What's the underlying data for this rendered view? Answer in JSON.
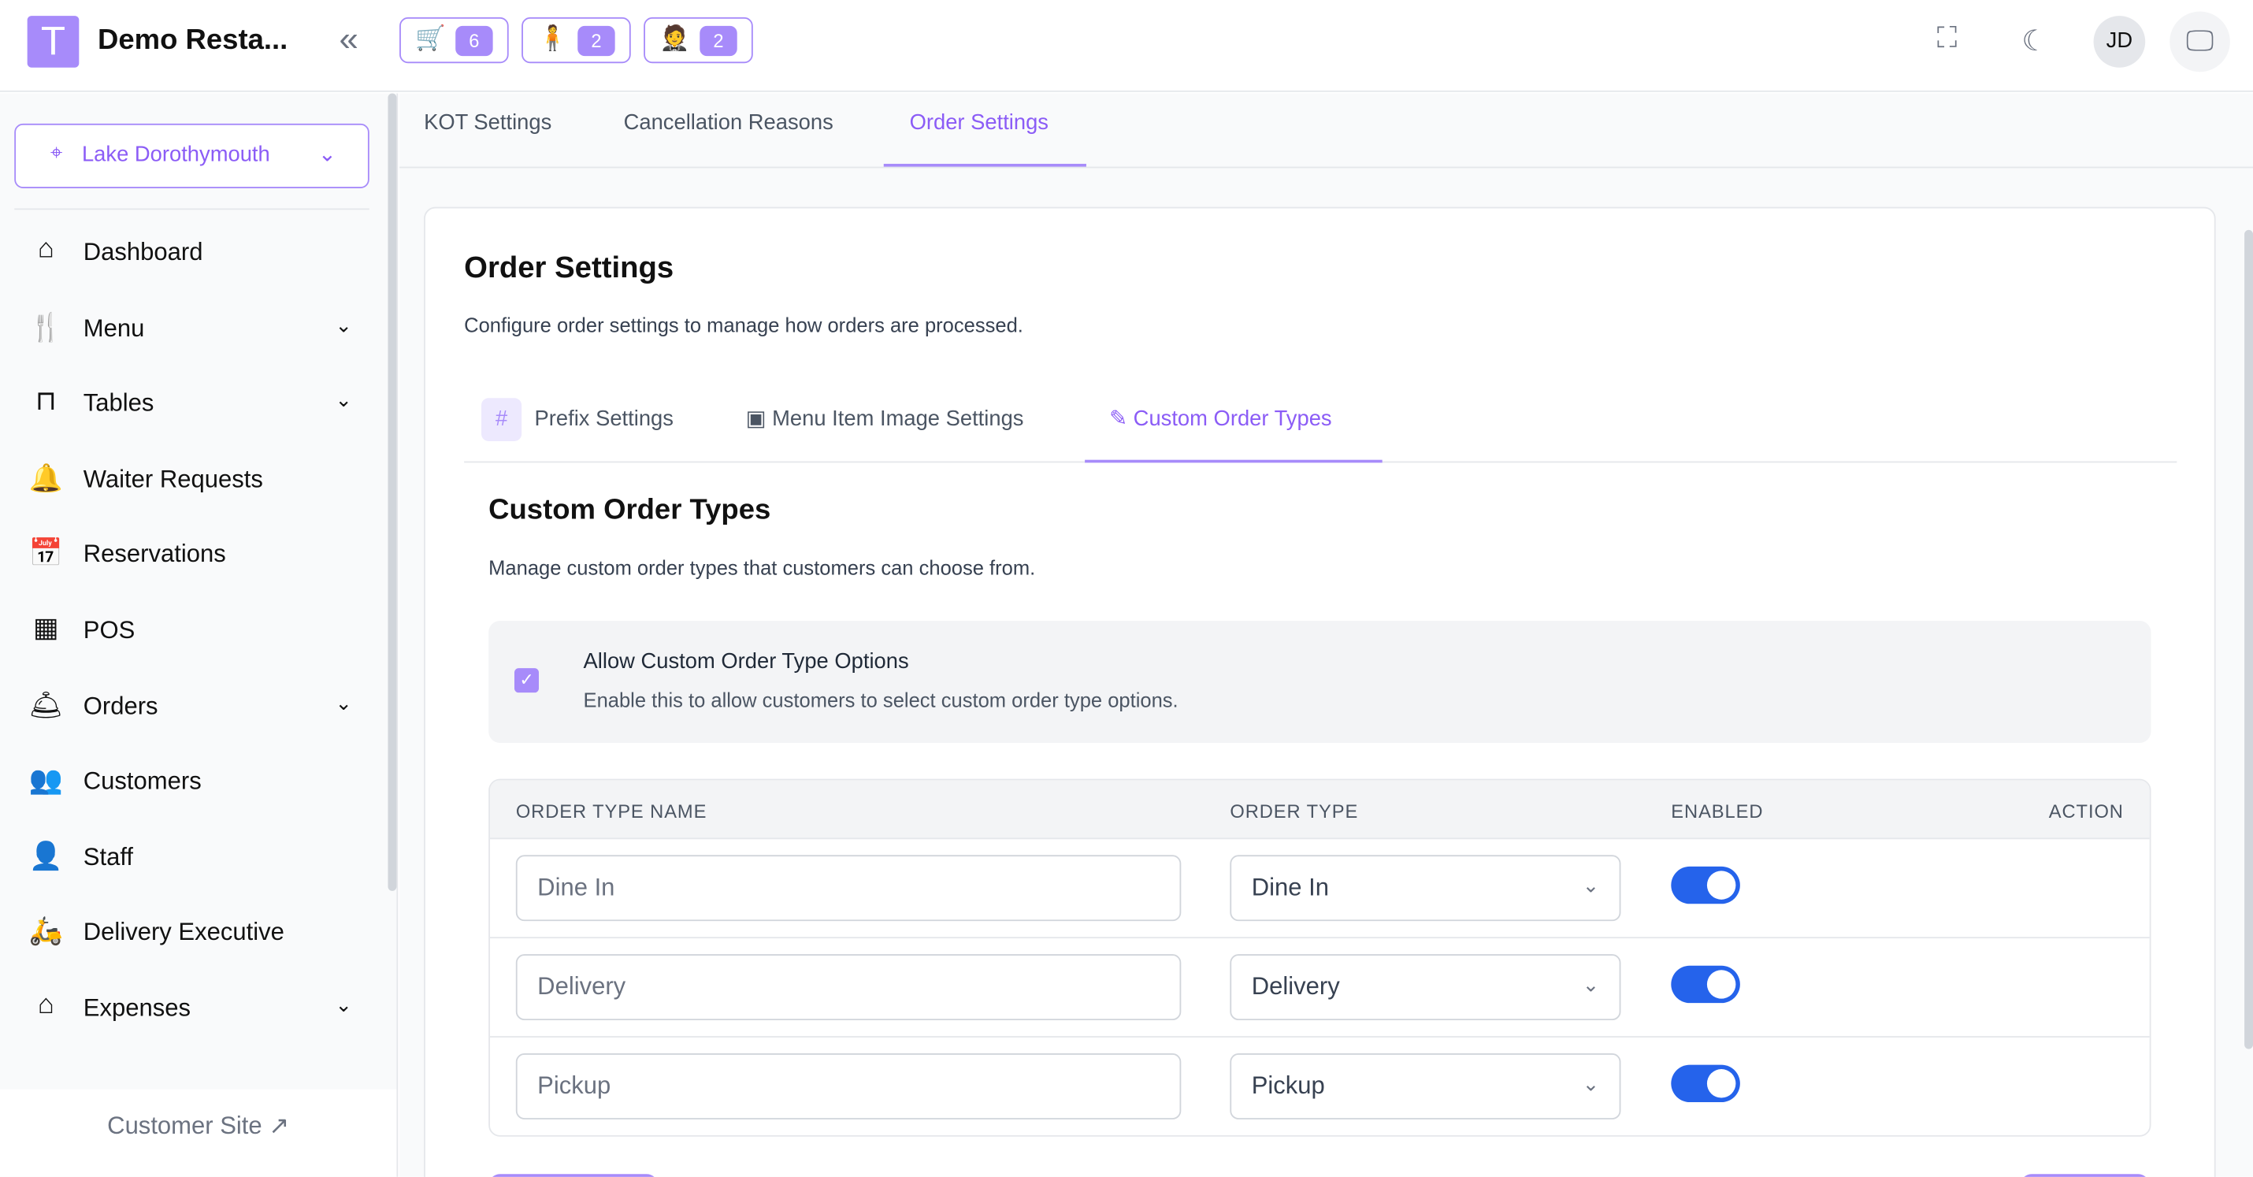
{
  "header": {
    "logo_letter": "T",
    "restaurant": "Demo Resta...",
    "badges": [
      {
        "icon": "cart-check-icon",
        "count": "6"
      },
      {
        "icon": "waiter-request-icon",
        "count": "2"
      },
      {
        "icon": "waiter-icon",
        "count": "2"
      }
    ],
    "avatar": "JD"
  },
  "sidebar": {
    "location": "Lake Dorothymouth",
    "items": [
      {
        "label": "Dashboard",
        "icon": "home-icon",
        "chevron": false
      },
      {
        "label": "Menu",
        "icon": "menu-icon",
        "chevron": true
      },
      {
        "label": "Tables",
        "icon": "table-icon",
        "chevron": true
      },
      {
        "label": "Waiter Requests",
        "icon": "bell-icon",
        "chevron": false
      },
      {
        "label": "Reservations",
        "icon": "calendar-icon",
        "chevron": false
      },
      {
        "label": "POS",
        "icon": "pos-icon",
        "chevron": false
      },
      {
        "label": "Orders",
        "icon": "cloche-icon",
        "chevron": true
      },
      {
        "label": "Customers",
        "icon": "users-icon",
        "chevron": false
      },
      {
        "label": "Staff",
        "icon": "staff-icon",
        "chevron": false
      },
      {
        "label": "Delivery Executive",
        "icon": "scooter-icon",
        "chevron": false
      },
      {
        "label": "Expenses",
        "icon": "expense-icon",
        "chevron": true
      }
    ],
    "footer": "Customer Site"
  },
  "tabs": [
    "KOT Settings",
    "Cancellation Reasons",
    "Order Settings"
  ],
  "card": {
    "title": "Order Settings",
    "subtitle": "Configure order settings to manage how orders are processed.",
    "subtabs": [
      "Prefix Settings",
      "Menu Item Image Settings",
      "Custom Order Types"
    ],
    "section_title": "Custom Order Types",
    "section_sub": "Manage custom order types that customers can choose from.",
    "allow_title": "Allow Custom Order Type Options",
    "allow_desc": "Enable this to allow customers to select custom order type options.",
    "allow_checked": true,
    "columns": [
      "ORDER TYPE NAME",
      "ORDER TYPE",
      "ENABLED",
      "ACTION"
    ],
    "rows": [
      {
        "name": "Dine In",
        "type": "Dine In",
        "enabled": true
      },
      {
        "name": "Delivery",
        "type": "Delivery",
        "enabled": true
      },
      {
        "name": "Pickup",
        "type": "Pickup",
        "enabled": true
      }
    ]
  },
  "colors": {
    "accent": "#a78bfa",
    "toggle": "#2563eb"
  }
}
